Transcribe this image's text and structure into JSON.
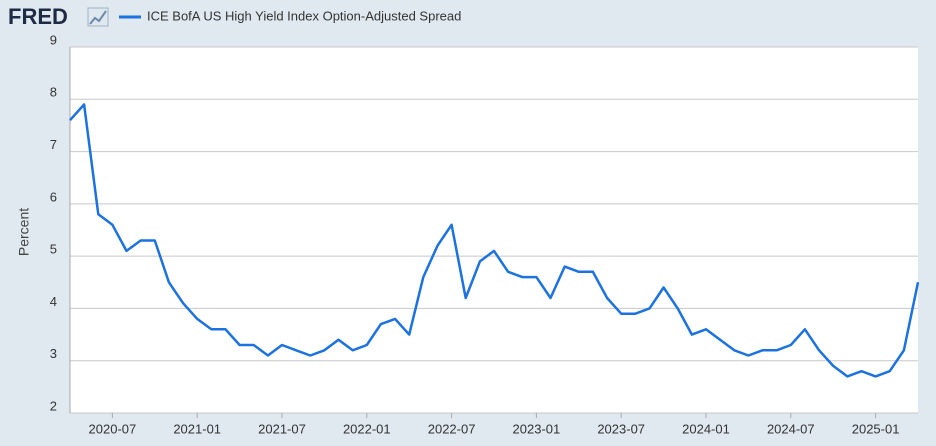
{
  "chart_data": {
    "type": "line",
    "brand": "FRED",
    "ylabel": "Percent",
    "x": [
      "2020-04",
      "2020-05",
      "2020-06",
      "2020-07",
      "2020-08",
      "2020-09",
      "2020-10",
      "2020-11",
      "2020-12",
      "2021-01",
      "2021-02",
      "2021-03",
      "2021-04",
      "2021-05",
      "2021-06",
      "2021-07",
      "2021-08",
      "2021-09",
      "2021-10",
      "2021-11",
      "2021-12",
      "2022-01",
      "2022-02",
      "2022-03",
      "2022-04",
      "2022-05",
      "2022-06",
      "2022-07",
      "2022-08",
      "2022-09",
      "2022-10",
      "2022-11",
      "2022-12",
      "2023-01",
      "2023-02",
      "2023-03",
      "2023-04",
      "2023-05",
      "2023-06",
      "2023-07",
      "2023-08",
      "2023-09",
      "2023-10",
      "2023-11",
      "2023-12",
      "2024-01",
      "2024-02",
      "2024-03",
      "2024-04",
      "2024-05",
      "2024-06",
      "2024-07",
      "2024-08",
      "2024-09",
      "2024-10",
      "2024-11",
      "2024-12",
      "2025-01",
      "2025-02",
      "2025-03",
      "2025-04"
    ],
    "series": [
      {
        "name": "ICE BofA US High Yield Index Option-Adjusted Spread",
        "color": "#1b72e0",
        "values": [
          7.6,
          7.9,
          5.8,
          5.6,
          5.1,
          5.3,
          5.3,
          4.5,
          4.1,
          3.8,
          3.6,
          3.6,
          3.3,
          3.3,
          3.1,
          3.3,
          3.2,
          3.1,
          3.2,
          3.4,
          3.2,
          3.3,
          3.7,
          3.8,
          3.5,
          4.6,
          5.2,
          5.6,
          4.2,
          4.9,
          5.1,
          4.7,
          4.6,
          4.6,
          4.2,
          4.8,
          4.7,
          4.7,
          4.2,
          3.9,
          3.9,
          4.0,
          4.4,
          4.0,
          3.5,
          3.6,
          3.4,
          3.2,
          3.1,
          3.2,
          3.2,
          3.3,
          3.6,
          3.2,
          2.9,
          2.7,
          2.8,
          2.7,
          2.8,
          3.2,
          4.5
        ]
      }
    ],
    "xlim": [
      "2020-04",
      "2025-04"
    ],
    "xticks": [
      "2020-07",
      "2021-01",
      "2021-07",
      "2022-01",
      "2022-07",
      "2023-01",
      "2023-07",
      "2024-01",
      "2024-07",
      "2025-01"
    ],
    "ylim": [
      2,
      9
    ],
    "yticks": [
      2,
      3,
      4,
      5,
      6,
      7,
      8,
      9
    ],
    "grid": true
  }
}
